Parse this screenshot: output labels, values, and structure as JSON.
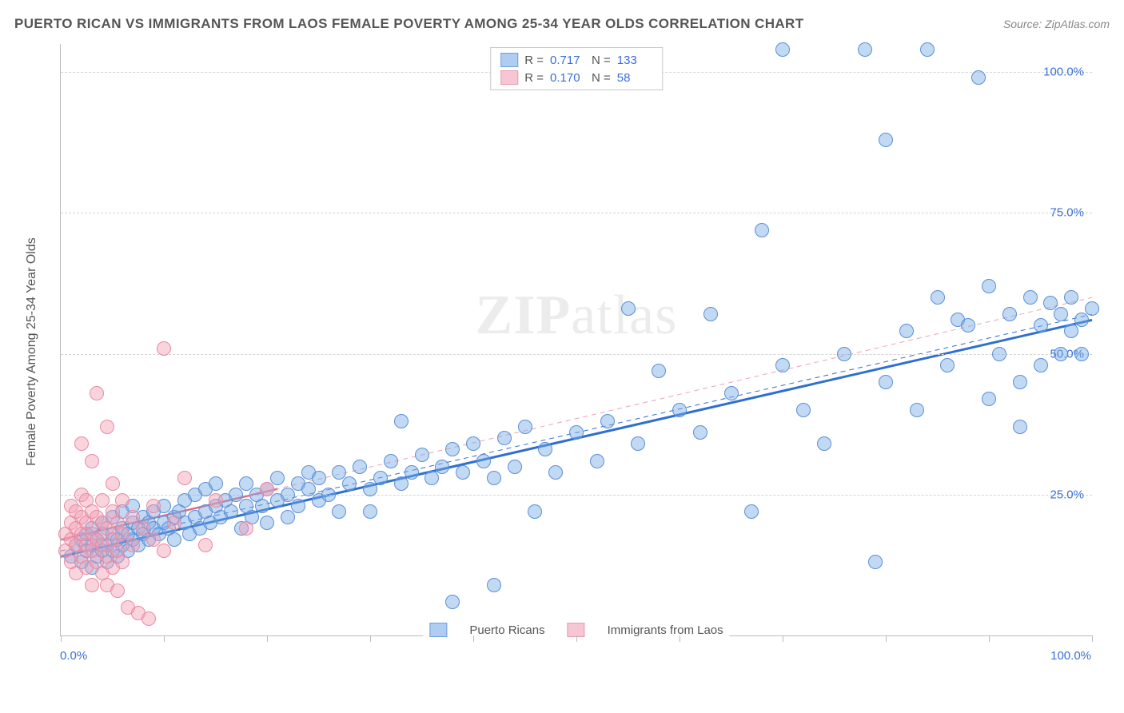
{
  "header": {
    "title": "PUERTO RICAN VS IMMIGRANTS FROM LAOS FEMALE POVERTY AMONG 25-34 YEAR OLDS CORRELATION CHART",
    "source": "Source: ZipAtlas.com"
  },
  "watermark": {
    "zip": "ZIP",
    "atlas": "atlas"
  },
  "chart": {
    "type": "scatter",
    "y_axis_title": "Female Poverty Among 25-34 Year Olds",
    "xlim": [
      0,
      100
    ],
    "ylim": [
      0,
      105
    ],
    "x_ticks": [
      0,
      10,
      20,
      30,
      40,
      50,
      60,
      70,
      80,
      90,
      100
    ],
    "y_gridlines": [
      25,
      50,
      75,
      100
    ],
    "y_tick_labels": [
      "25.0%",
      "50.0%",
      "75.0%",
      "100.0%"
    ],
    "x_label_min": "0.0%",
    "x_label_max": "100.0%",
    "background_color": "#ffffff",
    "grid_color": "#d5d5d5",
    "axis_color": "#bbbbbb",
    "tick_label_color": "#3a6fd8",
    "marker_radius": 8,
    "marker_stroke_width": 1.2,
    "series": [
      {
        "key": "pr",
        "label": "Puerto Ricans",
        "fill": "rgba(120,170,230,0.45)",
        "stroke": "#5a8fd6",
        "swatch_fill": "#aecdf0",
        "swatch_border": "#6fa0dd",
        "R": "0.717",
        "N": "133",
        "trend": {
          "x1": 0,
          "y1": 14,
          "x2": 100,
          "y2": 56,
          "color": "#2f6fd0",
          "width": 3,
          "dash": ""
        },
        "trend_ext": {
          "x1": 0,
          "y1": 15,
          "x2": 100,
          "y2": 57,
          "color": "#2f6fd0",
          "width": 1,
          "dash": "6 5"
        },
        "points": [
          [
            1,
            14
          ],
          [
            1.5,
            16
          ],
          [
            2,
            13
          ],
          [
            2,
            17
          ],
          [
            2.5,
            15
          ],
          [
            2.5,
            18
          ],
          [
            3,
            12
          ],
          [
            3,
            16
          ],
          [
            3,
            19
          ],
          [
            3.5,
            14
          ],
          [
            3.5,
            17
          ],
          [
            4,
            15
          ],
          [
            4,
            18
          ],
          [
            4,
            20
          ],
          [
            4.5,
            13
          ],
          [
            4.5,
            16
          ],
          [
            5,
            15
          ],
          [
            5,
            18
          ],
          [
            5,
            21
          ],
          [
            5.5,
            14
          ],
          [
            5.5,
            17
          ],
          [
            6,
            16
          ],
          [
            6,
            19
          ],
          [
            6,
            22
          ],
          [
            6.5,
            15
          ],
          [
            6.5,
            18
          ],
          [
            7,
            17
          ],
          [
            7,
            20
          ],
          [
            7,
            23
          ],
          [
            7.5,
            16
          ],
          [
            7.5,
            19
          ],
          [
            8,
            18
          ],
          [
            8,
            21
          ],
          [
            8.5,
            17
          ],
          [
            8.5,
            20
          ],
          [
            9,
            19
          ],
          [
            9,
            22
          ],
          [
            9.5,
            18
          ],
          [
            10,
            20
          ],
          [
            10,
            23
          ],
          [
            10.5,
            19
          ],
          [
            11,
            21
          ],
          [
            11,
            17
          ],
          [
            11.5,
            22
          ],
          [
            12,
            20
          ],
          [
            12,
            24
          ],
          [
            12.5,
            18
          ],
          [
            13,
            21
          ],
          [
            13,
            25
          ],
          [
            13.5,
            19
          ],
          [
            14,
            22
          ],
          [
            14,
            26
          ],
          [
            14.5,
            20
          ],
          [
            15,
            23
          ],
          [
            15,
            27
          ],
          [
            15.5,
            21
          ],
          [
            16,
            24
          ],
          [
            16.5,
            22
          ],
          [
            17,
            25
          ],
          [
            17.5,
            19
          ],
          [
            18,
            23
          ],
          [
            18,
            27
          ],
          [
            18.5,
            21
          ],
          [
            19,
            25
          ],
          [
            19.5,
            23
          ],
          [
            20,
            26
          ],
          [
            20,
            20
          ],
          [
            21,
            24
          ],
          [
            21,
            28
          ],
          [
            22,
            25
          ],
          [
            22,
            21
          ],
          [
            23,
            27
          ],
          [
            23,
            23
          ],
          [
            24,
            26
          ],
          [
            24,
            29
          ],
          [
            25,
            24
          ],
          [
            25,
            28
          ],
          [
            26,
            25
          ],
          [
            27,
            29
          ],
          [
            27,
            22
          ],
          [
            28,
            27
          ],
          [
            29,
            30
          ],
          [
            30,
            26
          ],
          [
            30,
            22
          ],
          [
            31,
            28
          ],
          [
            32,
            31
          ],
          [
            33,
            27
          ],
          [
            33,
            38
          ],
          [
            34,
            29
          ],
          [
            35,
            32
          ],
          [
            36,
            28
          ],
          [
            37,
            30
          ],
          [
            38,
            33
          ],
          [
            38,
            6
          ],
          [
            39,
            29
          ],
          [
            40,
            34
          ],
          [
            41,
            31
          ],
          [
            42,
            9
          ],
          [
            42,
            28
          ],
          [
            43,
            35
          ],
          [
            44,
            30
          ],
          [
            45,
            37
          ],
          [
            46,
            22
          ],
          [
            47,
            33
          ],
          [
            48,
            29
          ],
          [
            50,
            36
          ],
          [
            52,
            31
          ],
          [
            53,
            38
          ],
          [
            55,
            58
          ],
          [
            56,
            34
          ],
          [
            58,
            47
          ],
          [
            60,
            40
          ],
          [
            62,
            36
          ],
          [
            63,
            57
          ],
          [
            65,
            43
          ],
          [
            67,
            22
          ],
          [
            68,
            72
          ],
          [
            70,
            104
          ],
          [
            70,
            48
          ],
          [
            72,
            40
          ],
          [
            74,
            34
          ],
          [
            76,
            50
          ],
          [
            78,
            104
          ],
          [
            79,
            13
          ],
          [
            80,
            88
          ],
          [
            80,
            45
          ],
          [
            82,
            54
          ],
          [
            83,
            40
          ],
          [
            84,
            104
          ],
          [
            85,
            60
          ],
          [
            86,
            48
          ],
          [
            87,
            56
          ],
          [
            88,
            55
          ],
          [
            89,
            99
          ],
          [
            90,
            42
          ],
          [
            90,
            62
          ],
          [
            91,
            50
          ],
          [
            92,
            57
          ],
          [
            93,
            45
          ],
          [
            93,
            37
          ],
          [
            94,
            60
          ],
          [
            95,
            48
          ],
          [
            95,
            55
          ],
          [
            96,
            59
          ],
          [
            97,
            50
          ],
          [
            97,
            57
          ],
          [
            98,
            54
          ],
          [
            98,
            60
          ],
          [
            99,
            56
          ],
          [
            99,
            50
          ],
          [
            100,
            58
          ]
        ]
      },
      {
        "key": "laos",
        "label": "Immigrants from Laos",
        "fill": "rgba(245,160,180,0.45)",
        "stroke": "#e88aa2",
        "swatch_fill": "#f6c6d2",
        "swatch_border": "#ea9ab0",
        "R": "0.170",
        "N": "58",
        "trend": {
          "x1": 0,
          "y1": 17,
          "x2": 21,
          "y2": 26,
          "color": "#e06a88",
          "width": 2.5,
          "dash": ""
        },
        "trend_ext": {
          "x1": 0,
          "y1": 17,
          "x2": 100,
          "y2": 60,
          "color": "#e9a3b5",
          "width": 1,
          "dash": "6 5"
        },
        "points": [
          [
            0.5,
            15
          ],
          [
            0.5,
            18
          ],
          [
            1,
            13
          ],
          [
            1,
            17
          ],
          [
            1,
            20
          ],
          [
            1,
            23
          ],
          [
            1.5,
            11
          ],
          [
            1.5,
            16
          ],
          [
            1.5,
            19
          ],
          [
            1.5,
            22
          ],
          [
            2,
            14
          ],
          [
            2,
            18
          ],
          [
            2,
            21
          ],
          [
            2,
            25
          ],
          [
            2,
            34
          ],
          [
            2.5,
            12
          ],
          [
            2.5,
            16
          ],
          [
            2.5,
            20
          ],
          [
            2.5,
            24
          ],
          [
            3,
            9
          ],
          [
            3,
            15
          ],
          [
            3,
            18
          ],
          [
            3,
            22
          ],
          [
            3,
            31
          ],
          [
            3.5,
            13
          ],
          [
            3.5,
            17
          ],
          [
            3.5,
            21
          ],
          [
            3.5,
            43
          ],
          [
            4,
            11
          ],
          [
            4,
            16
          ],
          [
            4,
            20
          ],
          [
            4,
            24
          ],
          [
            4.5,
            9
          ],
          [
            4.5,
            14
          ],
          [
            4.5,
            19
          ],
          [
            4.5,
            37
          ],
          [
            5,
            12
          ],
          [
            5,
            17
          ],
          [
            5,
            22
          ],
          [
            5,
            27
          ],
          [
            5.5,
            8
          ],
          [
            5.5,
            15
          ],
          [
            5.5,
            20
          ],
          [
            6,
            13
          ],
          [
            6,
            18
          ],
          [
            6,
            24
          ],
          [
            6.5,
            5
          ],
          [
            7,
            16
          ],
          [
            7,
            21
          ],
          [
            7.5,
            4
          ],
          [
            8,
            19
          ],
          [
            8.5,
            3
          ],
          [
            9,
            17
          ],
          [
            9,
            23
          ],
          [
            10,
            51
          ],
          [
            10,
            15
          ],
          [
            11,
            20
          ],
          [
            12,
            28
          ],
          [
            14,
            16
          ],
          [
            15,
            24
          ],
          [
            18,
            19
          ],
          [
            20,
            26
          ]
        ]
      }
    ]
  },
  "legend_top": {
    "R_label": "R =",
    "N_label": "N ="
  }
}
